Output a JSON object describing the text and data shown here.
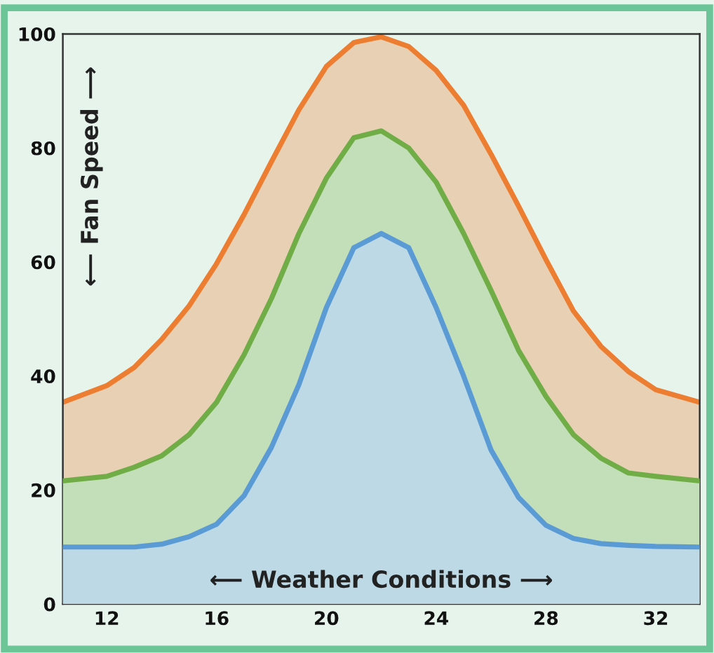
{
  "chart_data": {
    "type": "area",
    "xlabel": "⟵ Weather Conditions ⟶",
    "ylabel": "⟵ Fan Speed ⟶",
    "x": [
      10.4,
      12,
      13,
      14,
      15,
      16,
      17,
      18,
      19,
      20,
      21,
      22,
      23,
      24,
      25,
      26,
      27,
      28,
      29,
      30,
      31,
      32,
      33.6
    ],
    "series": [
      {
        "color": "#ed7d31",
        "values": [
          35.4,
          38.3,
          41.5,
          46.4,
          52.3,
          59.7,
          68.3,
          77.6,
          86.7,
          94.3,
          98.5,
          99.5,
          97.8,
          93.6,
          87.5,
          78.9,
          69.8,
          60.4,
          51.4,
          45.2,
          40.8,
          37.6,
          35.4
        ]
      },
      {
        "color": "#70ad47",
        "values": [
          21.6,
          22.4,
          24,
          26,
          29.7,
          35.4,
          43.7,
          53.6,
          65,
          74.7,
          81.8,
          83,
          80,
          74,
          65,
          55,
          44.5,
          36.4,
          29.7,
          25.6,
          23,
          22.4,
          21.6
        ]
      },
      {
        "color": "#5b9bd5",
        "values": [
          10,
          10,
          10,
          10.5,
          11.8,
          14,
          19,
          27.5,
          38.5,
          52,
          62.5,
          65,
          62.5,
          52,
          40,
          27,
          18.7,
          13.8,
          11.5,
          10.6,
          10.3,
          10.1,
          10
        ]
      }
    ],
    "xlim": [
      10.4,
      33.6
    ],
    "ylim": [
      0,
      100
    ],
    "xticks": [
      12,
      16,
      20,
      24,
      28,
      32
    ],
    "yticks": [
      0,
      20,
      40,
      60,
      80,
      100
    ],
    "grid": false,
    "legend": false
  }
}
